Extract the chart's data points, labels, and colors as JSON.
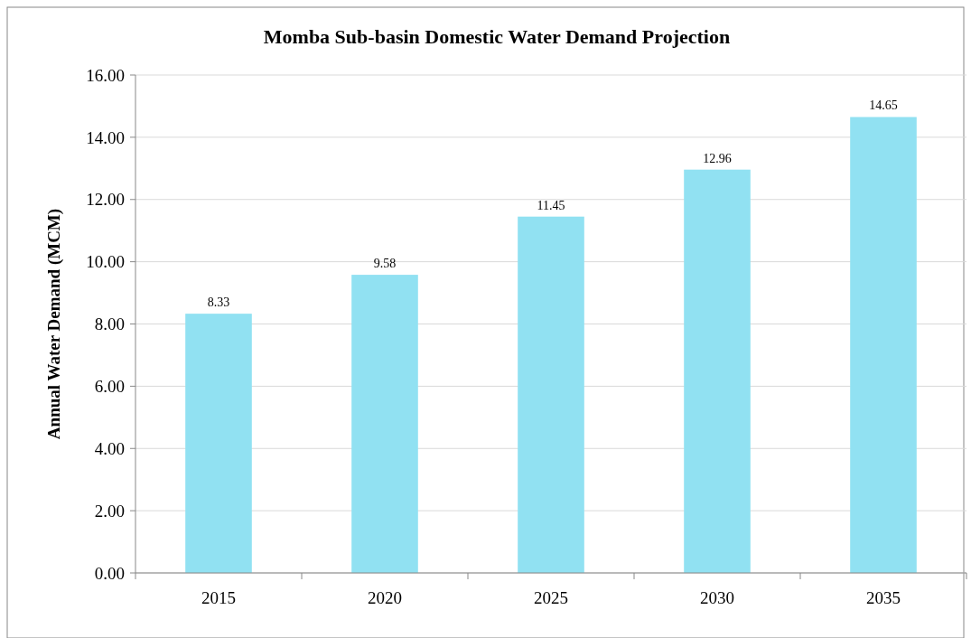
{
  "chart_data": {
    "type": "bar",
    "title": "Momba Sub-basin Domestic Water Demand Projection",
    "ylabel": "Annual Water Demand (MCM)",
    "categories": [
      "2015",
      "2020",
      "2025",
      "2030",
      "2035"
    ],
    "values": [
      8.33,
      9.58,
      11.45,
      12.96,
      14.65
    ],
    "color": "#91e1f2",
    "ylim": [
      0,
      16
    ],
    "yticks": [
      {
        "value": 0,
        "label": "0.00"
      },
      {
        "value": 2,
        "label": "2.00"
      },
      {
        "value": 4,
        "label": "4.00"
      },
      {
        "value": 6,
        "label": "6.00"
      },
      {
        "value": 8,
        "label": "8.00"
      },
      {
        "value": 10,
        "label": "10.00"
      },
      {
        "value": 12,
        "label": "12.00"
      },
      {
        "value": 14,
        "label": "14.00"
      },
      {
        "value": 16,
        "label": "16.00"
      }
    ],
    "grid": "y",
    "data_labels": true
  }
}
